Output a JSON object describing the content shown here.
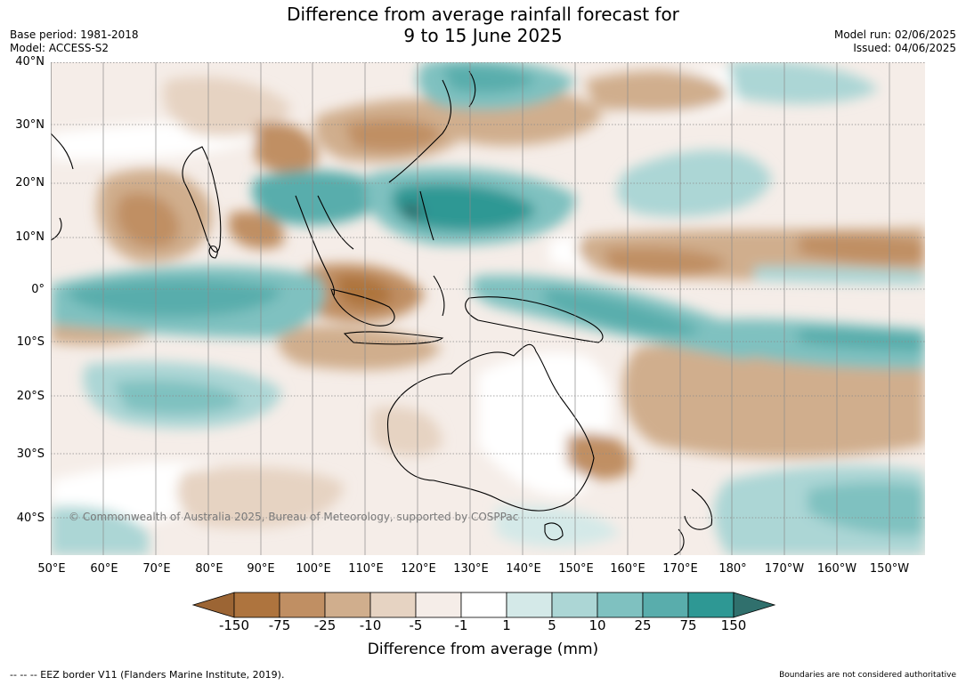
{
  "header": {
    "title_line1": "Difference from average rainfall forecast for",
    "title_line2": "9 to 15 June 2025",
    "base_period": "Base period: 1981-2018",
    "model": "Model: ACCESS-S2",
    "model_run": "Model run: 02/06/2025",
    "issued": "Issued: 04/06/2025"
  },
  "map": {
    "extent": {
      "lon_min": 50,
      "lon_max": 217,
      "lat_min": -47,
      "lat_max": 40
    },
    "lat_labels": [
      {
        "text": "40°N",
        "lat": 40
      },
      {
        "text": "30°N",
        "lat": 30
      },
      {
        "text": "20°N",
        "lat": 20
      },
      {
        "text": "10°N",
        "lat": 10
      },
      {
        "text": "0°",
        "lat": 0
      },
      {
        "text": "10°S",
        "lat": -10
      },
      {
        "text": "20°S",
        "lat": -20
      },
      {
        "text": "30°S",
        "lat": -30
      },
      {
        "text": "40°S",
        "lat": -40
      }
    ],
    "lon_labels": [
      {
        "text": "50°E",
        "lon": 50
      },
      {
        "text": "60°E",
        "lon": 60
      },
      {
        "text": "70°E",
        "lon": 70
      },
      {
        "text": "80°E",
        "lon": 80
      },
      {
        "text": "90°E",
        "lon": 90
      },
      {
        "text": "100°E",
        "lon": 100
      },
      {
        "text": "110°E",
        "lon": 110
      },
      {
        "text": "120°E",
        "lon": 120
      },
      {
        "text": "130°E",
        "lon": 130
      },
      {
        "text": "140°E",
        "lon": 140
      },
      {
        "text": "150°E",
        "lon": 150
      },
      {
        "text": "160°E",
        "lon": 160
      },
      {
        "text": "170°E",
        "lon": 170
      },
      {
        "text": "180°",
        "lon": 180
      },
      {
        "text": "170°W",
        "lon": 190
      },
      {
        "text": "160°W",
        "lon": 200
      },
      {
        "text": "150°W",
        "lon": 210
      }
    ],
    "copyright": "© Commonwealth of Australia 2025, Bureau of Meteorology, supported by COSPPac"
  },
  "colorbar": {
    "label": "Difference from average (mm)",
    "ticks": [
      "-150",
      "-75",
      "-25",
      "-10",
      "-5",
      "-1",
      "1",
      "5",
      "10",
      "25",
      "75",
      "150"
    ],
    "colors": [
      "#9c6534",
      "#ae743e",
      "#c08f63",
      "#d0ae8d",
      "#e6d3c2",
      "#f5ede8",
      "#ffffff",
      "#d4e9e8",
      "#acd6d5",
      "#7fc1c0",
      "#59adac",
      "#2e9894",
      "#30706d"
    ],
    "over_color": "#30706d",
    "under_color": "#9c6534"
  },
  "footer": {
    "eez_note": "--  --  -- EEZ border V11 (Flanders Marine Institute, 2019).",
    "boundaries_note": "Boundaries are not considered authoritative"
  }
}
